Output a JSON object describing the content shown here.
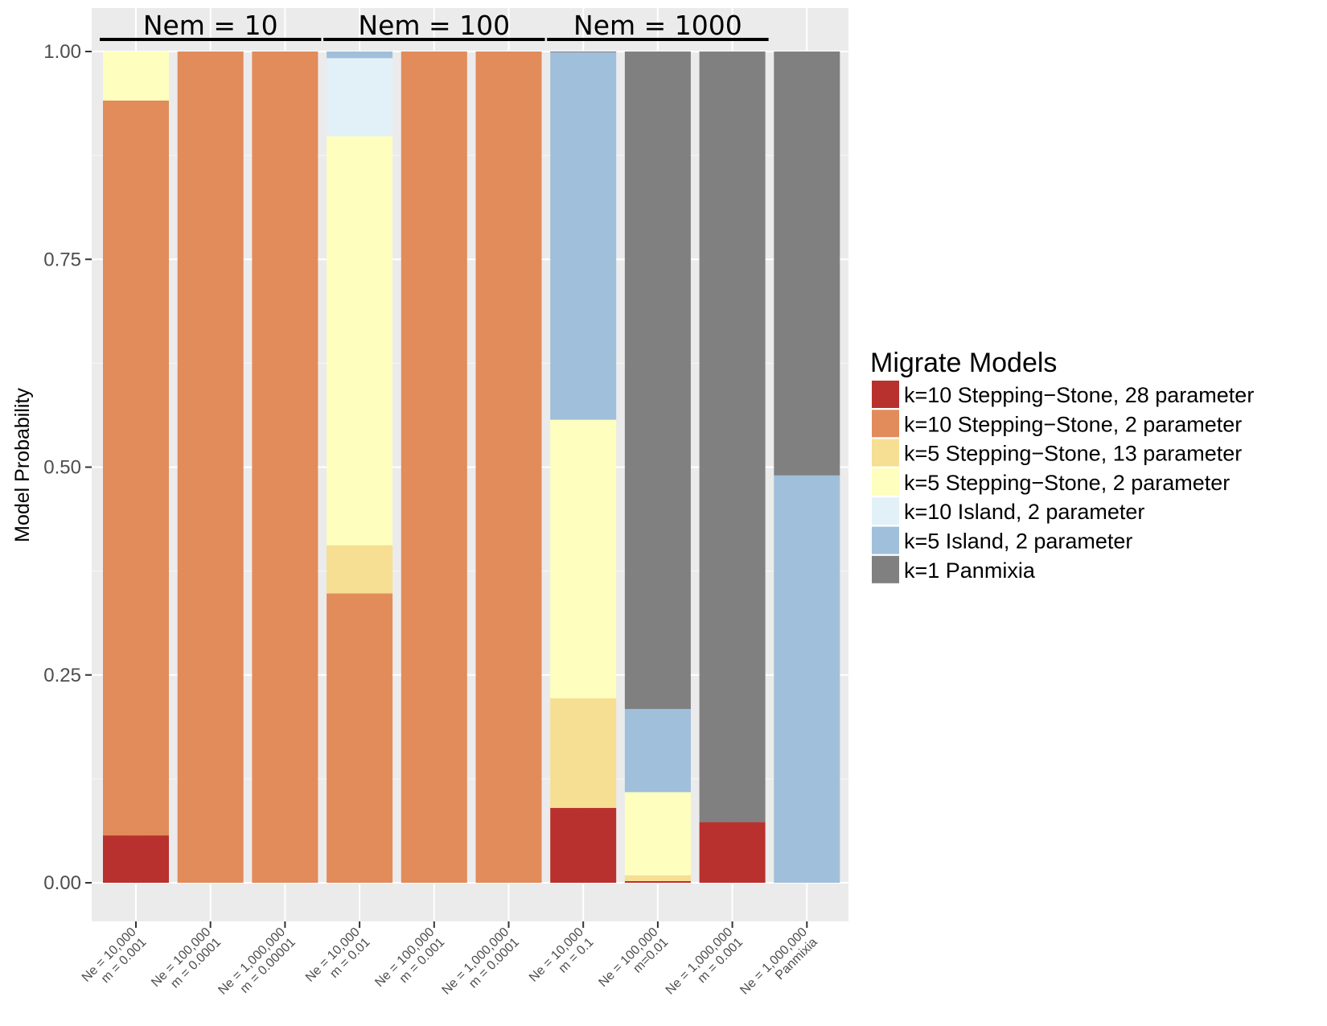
{
  "chart_data": {
    "type": "bar",
    "stacked": true,
    "ylabel": "Model Probability",
    "xlabel": "",
    "ylim": [
      0,
      1
    ],
    "yticks": [
      "0.00",
      "0.25",
      "0.50",
      "0.75",
      "1.00"
    ],
    "grid": true,
    "legend_position": "right",
    "legend_title": "Migrate Models",
    "categories": [
      [
        "Ne = 10,000",
        "m = 0.001"
      ],
      [
        "Ne = 100,000",
        "m = 0.0001"
      ],
      [
        "Ne = 1,000,000",
        "m = 0.00001"
      ],
      [
        "Ne = 10,000",
        "m = 0.01"
      ],
      [
        "Ne = 100,000",
        "m = 0.001"
      ],
      [
        "Ne = 1,000,000",
        "m = 0.0001"
      ],
      [
        "Ne = 10,000",
        "m = 0.1"
      ],
      [
        "Ne = 100,000",
        "m=0.01"
      ],
      [
        "Ne = 1,000,000",
        "m = 0.001"
      ],
      [
        "Ne = 1,000,000",
        "Panmixia"
      ]
    ],
    "groups": [
      {
        "label": "Nem = 10",
        "start": 0,
        "end": 2
      },
      {
        "label": "Nem = 100",
        "start": 3,
        "end": 5
      },
      {
        "label": "Nem = 1000",
        "start": 6,
        "end": 8
      }
    ],
    "series": [
      {
        "name": "k=10 Stepping−Stone, 28 parameter",
        "color": "#b8312e",
        "values": [
          0.057,
          0.0,
          0.0,
          0.0,
          0.0,
          0.0,
          0.09,
          0.002,
          0.073,
          0.0
        ]
      },
      {
        "name": "k=10 Stepping−Stone, 2 parameter",
        "color": "#e28b5b",
        "values": [
          0.884,
          1.0,
          1.0,
          0.348,
          1.0,
          1.0,
          0.0,
          0.0,
          0.0,
          0.0
        ]
      },
      {
        "name": "k=5 Stepping−Stone, 13 parameter",
        "color": "#f6de92",
        "values": [
          0.0,
          0.0,
          0.0,
          0.058,
          0.0,
          0.0,
          0.132,
          0.007,
          0.0,
          0.0
        ]
      },
      {
        "name": "k=5 Stepping−Stone, 2 parameter",
        "color": "#feffbe",
        "values": [
          0.059,
          0.0,
          0.0,
          0.492,
          0.0,
          0.0,
          0.335,
          0.1,
          0.0,
          0.0
        ]
      },
      {
        "name": "k=10 Island, 2 parameter",
        "color": "#e2f0f8",
        "values": [
          0.0,
          0.0,
          0.0,
          0.094,
          0.0,
          0.0,
          0.0,
          0.0,
          0.0,
          0.0
        ]
      },
      {
        "name": "k=5 Island, 2 parameter",
        "color": "#a0bfdb",
        "values": [
          0.0,
          0.0,
          0.0,
          0.008,
          0.0,
          0.0,
          0.442,
          0.1,
          0.0,
          0.49
        ]
      },
      {
        "name": "k=1 Panmixia",
        "color": "#808080",
        "values": [
          0.0,
          0.0,
          0.0,
          0.0,
          0.0,
          0.0,
          0.001,
          0.791,
          0.927,
          0.51
        ]
      }
    ]
  }
}
